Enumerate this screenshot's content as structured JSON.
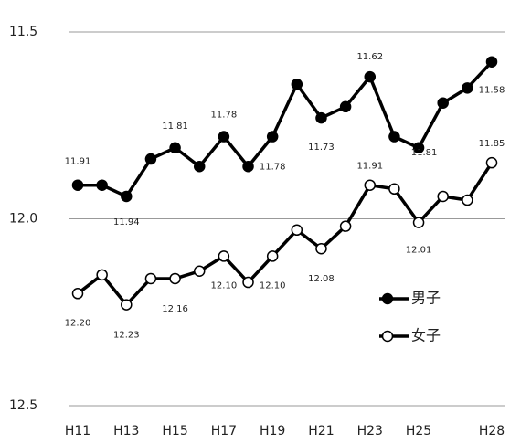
{
  "chart_data": {
    "type": "line",
    "categories": [
      "H11",
      null,
      "H13",
      null,
      "H15",
      null,
      "H17",
      null,
      "H19",
      null,
      "H21",
      null,
      "H23",
      null,
      "H25",
      null,
      null,
      "H28"
    ],
    "series": [
      {
        "name": "男子",
        "color": "#000000",
        "marker_fill": "#000000",
        "values": [
          11.91,
          11.91,
          11.94,
          11.84,
          11.81,
          11.86,
          11.78,
          11.86,
          11.78,
          11.64,
          11.73,
          11.7,
          11.62,
          11.78,
          11.81,
          11.69,
          11.65,
          11.58
        ],
        "value_labels": [
          "11.91",
          null,
          "11.94",
          null,
          "11.81",
          null,
          "11.78",
          null,
          "11.78",
          null,
          "11.73",
          null,
          "11.62",
          null,
          "11.81",
          null,
          null,
          "11.58"
        ]
      },
      {
        "name": "女子",
        "color": "#000000",
        "marker_fill": "#ffffff",
        "values": [
          12.2,
          12.15,
          12.23,
          12.16,
          12.16,
          12.14,
          12.1,
          12.17,
          12.1,
          12.03,
          12.08,
          12.02,
          11.91,
          11.92,
          12.01,
          11.94,
          11.95,
          11.85
        ],
        "value_labels": [
          "12.20",
          null,
          "12.23",
          null,
          "12.16",
          null,
          "12.10",
          null,
          "12.10",
          null,
          "12.08",
          null,
          "11.91",
          null,
          "12.01",
          null,
          null,
          "11.85"
        ]
      }
    ],
    "ylim": [
      12.5,
      11.5
    ],
    "yticks": [
      {
        "value": 12.5,
        "label": "12.5"
      },
      {
        "value": 12,
        "label": "12.0"
      },
      {
        "value": 11.5,
        "label": "11.5"
      }
    ],
    "grid": true
  }
}
